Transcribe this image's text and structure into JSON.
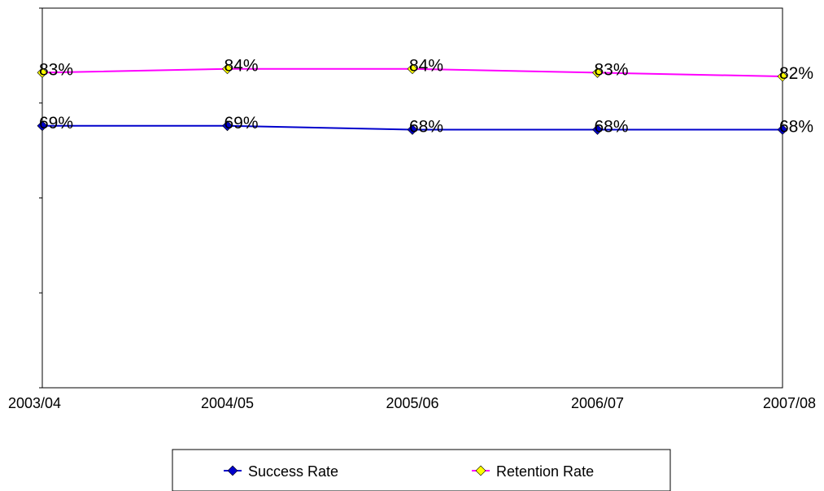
{
  "chart_data": {
    "type": "line",
    "title": "",
    "xlabel": "",
    "ylabel": "",
    "categories": [
      "2003/04",
      "2004/05",
      "2005/06",
      "2006/07",
      "2007/08"
    ],
    "ylim": [
      0,
      1
    ],
    "grid": false,
    "legend_position": "bottom",
    "series": [
      {
        "name": "Success Rate",
        "values": [
          0.69,
          0.69,
          0.68,
          0.68,
          0.68
        ],
        "labels": [
          "69%",
          "69%",
          "68%",
          "68%",
          "68%"
        ],
        "line_color": "#0000cc",
        "marker": "diamond",
        "marker_color": "#0000cc"
      },
      {
        "name": "Retention Rate",
        "values": [
          0.83,
          0.84,
          0.84,
          0.83,
          0.82
        ],
        "labels": [
          "83%",
          "84%",
          "84%",
          "83%",
          "82%"
        ],
        "line_color": "#ff00ff",
        "marker": "diamond",
        "marker_color": "#ffff00"
      }
    ]
  }
}
